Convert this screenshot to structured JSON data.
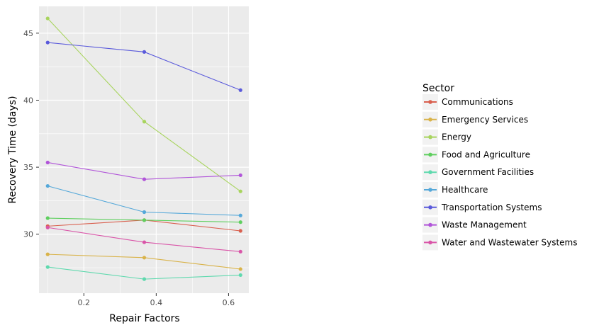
{
  "chart_data": {
    "type": "line",
    "xlabel": "Repair Factors",
    "ylabel": "Recovery Time (days)",
    "xlim": [
      0.076,
      0.656
    ],
    "ylim": [
      25.6,
      47.0
    ],
    "x_ticks": [
      0.2,
      0.4,
      0.6
    ],
    "x_tick_labels": [
      "0.2",
      "0.4",
      "0.6"
    ],
    "y_ticks": [
      30,
      35,
      40,
      45
    ],
    "y_tick_labels": [
      "30",
      "35",
      "40",
      "45"
    ],
    "x": [
      0.1,
      0.367,
      0.633
    ],
    "grid": true,
    "legend_position": "right",
    "legend_title": "Sector",
    "series": [
      {
        "name": "Communications",
        "color": "#d9604f",
        "values": [
          30.6,
          31.05,
          30.25
        ]
      },
      {
        "name": "Emergency Services",
        "color": "#d9b34a",
        "values": [
          28.5,
          28.25,
          27.4
        ]
      },
      {
        "name": "Energy",
        "color": "#a8d45e",
        "values": [
          46.1,
          38.4,
          33.2
        ]
      },
      {
        "name": "Food and Agriculture",
        "color": "#5fcf5f",
        "values": [
          31.2,
          31.05,
          30.9
        ]
      },
      {
        "name": "Government Facilities",
        "color": "#5fd9ae",
        "values": [
          27.55,
          26.65,
          26.95
        ]
      },
      {
        "name": "Healthcare",
        "color": "#55a8d9",
        "values": [
          33.6,
          31.65,
          31.4
        ]
      },
      {
        "name": "Transportation Systems",
        "color": "#5a5adb",
        "values": [
          44.3,
          43.6,
          40.75
        ]
      },
      {
        "name": "Waste Management",
        "color": "#b155d9",
        "values": [
          35.35,
          34.1,
          34.4
        ]
      },
      {
        "name": "Water and Wastewater Systems",
        "color": "#d955a8",
        "values": [
          30.5,
          29.4,
          28.7
        ]
      }
    ]
  }
}
